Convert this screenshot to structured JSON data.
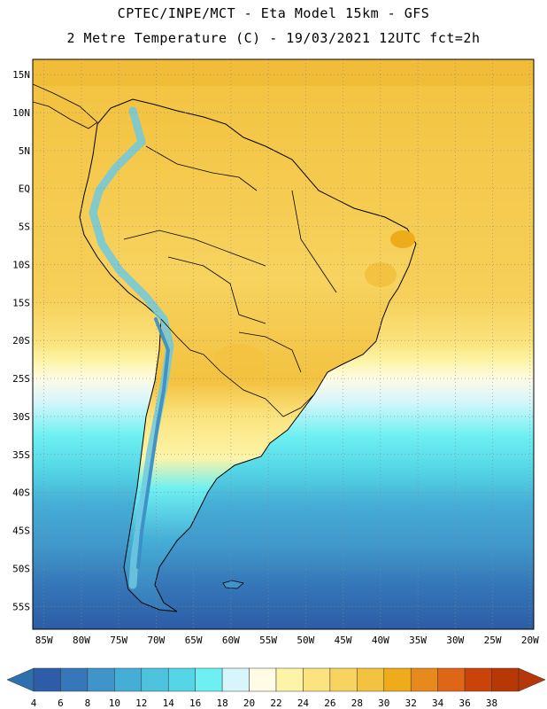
{
  "header": {
    "line1": "CPTEC/INPE/MCT -  Eta Model 15km - GFS",
    "line2": "2 Metre Temperature (C) - 19/03/2021 12UTC fct=2h"
  },
  "axes": {
    "lat_labels": [
      "15N",
      "10N",
      "5N",
      "EQ",
      "5S",
      "10S",
      "15S",
      "20S",
      "25S",
      "30S",
      "35S",
      "40S",
      "45S",
      "50S",
      "55S"
    ],
    "lat_values": [
      15,
      10,
      5,
      0,
      -5,
      -10,
      -15,
      -20,
      -25,
      -30,
      -35,
      -40,
      -45,
      -50,
      -55
    ],
    "lon_labels": [
      "85W",
      "80W",
      "75W",
      "70W",
      "65W",
      "60W",
      "55W",
      "50W",
      "45W",
      "40W",
      "35W",
      "30W",
      "25W",
      "20W"
    ],
    "lon_values": [
      -85,
      -80,
      -75,
      -70,
      -65,
      -60,
      -55,
      -50,
      -45,
      -40,
      -35,
      -30,
      -25,
      -20
    ]
  },
  "colorbar": {
    "labels": [
      "4",
      "6",
      "8",
      "10",
      "12",
      "14",
      "16",
      "18",
      "20",
      "22",
      "24",
      "26",
      "28",
      "30",
      "32",
      "34",
      "36",
      "38"
    ],
    "colors": [
      "#2c5da6",
      "#3577b8",
      "#3f95c9",
      "#45aed6",
      "#4dc3de",
      "#55d6e6",
      "#6ef0f2",
      "#d6f6fb",
      "#fffbe4",
      "#fdf4a8",
      "#fbe47f",
      "#f7d35f",
      "#f3c240",
      "#eeab1a",
      "#e78a1e",
      "#df6517",
      "#c9430b",
      "#b73705"
    ],
    "start_color": "#2e6fae",
    "end_color": "#b6370a"
  }
}
